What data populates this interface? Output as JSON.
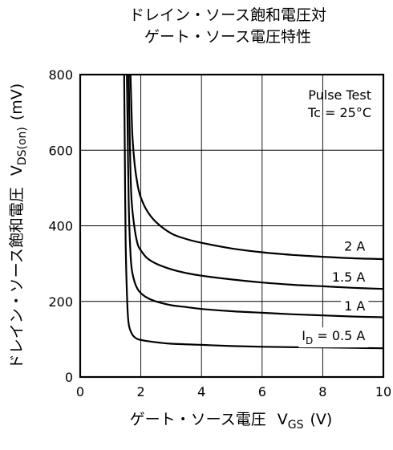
{
  "chart_data": {
    "type": "line",
    "title_line1": "ドレイン・ソース飽和電圧対",
    "title_line2": "ゲート・ソース電圧特性",
    "xlabel_main": "ゲート・ソース電圧",
    "xlabel_sym": "V",
    "xlabel_sub": "GS",
    "xlabel_unit": "(V)",
    "ylabel_main": "ドレイン・ソース飽和電圧",
    "ylabel_sym": "V",
    "ylabel_sub": "DS(on)",
    "ylabel_unit": "(mV)",
    "xlim": [
      0,
      10
    ],
    "ylim": [
      0,
      800
    ],
    "xticks": [
      "0",
      "2",
      "4",
      "6",
      "8",
      "10"
    ],
    "yticks": [
      "0",
      "200",
      "400",
      "600",
      "800"
    ],
    "grid": true,
    "annotation_line1": "Pulse Test",
    "annotation_line2": "Tc = 25°C",
    "series": [
      {
        "name": "2 A",
        "label_sym": "",
        "label_sub": "",
        "label_rest": "2 A",
        "x": [
          1.66,
          1.68,
          1.72,
          1.8,
          1.9,
          2.0,
          2.2,
          2.5,
          3.0,
          3.5,
          4.0,
          5.0,
          6.0,
          7.0,
          8.0,
          9.0,
          10.0
        ],
        "y": [
          800,
          740,
          640,
          560,
          505,
          475,
          440,
          410,
          380,
          365,
          355,
          340,
          330,
          323,
          318,
          314,
          312
        ]
      },
      {
        "name": "1.5 A",
        "label_sym": "",
        "label_sub": "",
        "label_rest": "1.5 A",
        "x": [
          1.6,
          1.62,
          1.66,
          1.7,
          1.8,
          1.9,
          2.0,
          2.2,
          2.5,
          3.0,
          3.5,
          4.0,
          5.0,
          6.0,
          7.0,
          8.0,
          9.0,
          10.0
        ],
        "y": [
          800,
          700,
          540,
          460,
          390,
          350,
          335,
          315,
          300,
          285,
          275,
          268,
          258,
          250,
          244,
          240,
          236,
          233
        ]
      },
      {
        "name": "1 A",
        "label_sym": "",
        "label_sub": "",
        "label_rest": "1 A",
        "x": [
          1.54,
          1.56,
          1.6,
          1.65,
          1.7,
          1.8,
          1.9,
          2.0,
          2.2,
          2.5,
          3.0,
          3.5,
          4.0,
          5.0,
          6.0,
          7.0,
          8.0,
          9.0,
          10.0
        ],
        "y": [
          800,
          680,
          460,
          340,
          285,
          250,
          232,
          222,
          210,
          200,
          190,
          185,
          180,
          174,
          170,
          166,
          163,
          160,
          158
        ]
      },
      {
        "name": "I_D = 0.5 A",
        "label_sym": "I",
        "label_sub": "D",
        "label_rest": " = 0.5 A",
        "x": [
          1.45,
          1.47,
          1.5,
          1.55,
          1.6,
          1.7,
          1.8,
          1.9,
          2.0,
          2.3,
          2.6,
          3.0,
          4.0,
          5.0,
          6.0,
          7.0,
          8.0,
          9.0,
          10.0
        ],
        "y": [
          800,
          600,
          350,
          200,
          140,
          115,
          105,
          100,
          98,
          94,
          91,
          88,
          85,
          82,
          80,
          79,
          78,
          77,
          76
        ]
      }
    ],
    "label_positions": [
      {
        "x": 9.4,
        "y": 347
      },
      {
        "x": 9.4,
        "y": 265
      },
      {
        "x": 9.4,
        "y": 189
      },
      {
        "x": 9.4,
        "y": 110
      }
    ]
  }
}
